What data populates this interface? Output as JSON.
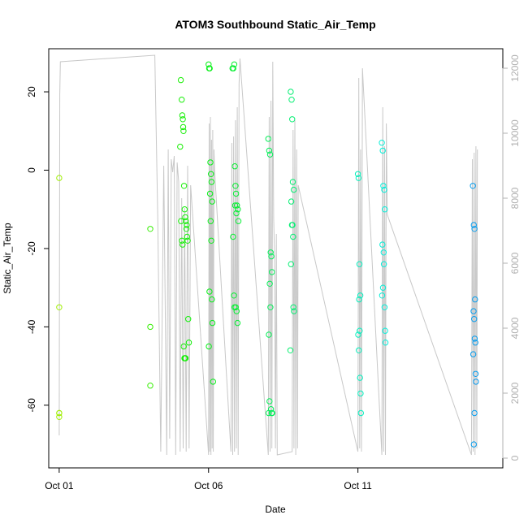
{
  "chart_data": {
    "type": "scatter",
    "title": "ATOM3 Southbound Static_Air_Temp",
    "xlabel": "Date",
    "ylabel": "Static_Air_Temp",
    "x_ticks": [
      "Oct 01",
      "Oct 06",
      "Oct 11"
    ],
    "x_tick_values": [
      1,
      6,
      11
    ],
    "xlim": [
      0.65,
      15.85
    ],
    "ylim": [
      -76,
      31
    ],
    "y_ticks": [
      -60,
      -40,
      -20,
      0,
      20
    ],
    "y2lim": [
      -300,
      12600
    ],
    "y2_ticks": [
      0,
      2000,
      4000,
      6000,
      8000,
      10000,
      12000
    ],
    "y2_color": "#b0b0b0",
    "grid": false,
    "series": [
      {
        "kind": "points",
        "color_scale": "green-to-blue by date",
        "x": [
          1.0,
          1.0,
          1.0,
          1.0,
          1.0,
          4.05,
          4.05,
          4.05,
          5.07,
          5.1,
          5.12,
          5.14,
          5.15,
          5.16,
          5.18,
          5.2,
          5.22,
          5.24,
          5.26,
          5.28,
          5.3,
          5.32,
          5.34,
          5.05,
          5.08,
          5.11,
          5.13,
          5.17,
          5.19,
          5.21,
          5.23,
          5.27,
          6.0,
          6.02,
          6.04,
          6.06,
          6.08,
          6.1,
          6.12,
          6.05,
          6.07,
          6.09,
          6.03,
          6.11,
          6.13,
          6.01,
          6.15,
          6.8,
          6.83,
          6.86,
          6.88,
          6.9,
          6.92,
          6.95,
          6.98,
          7.0,
          6.82,
          6.85,
          6.87,
          6.91,
          6.94,
          6.97,
          6.89,
          6.93,
          8.0,
          8.03,
          8.06,
          8.08,
          8.1,
          8.12,
          8.05,
          8.07,
          8.02,
          8.04,
          8.09,
          8.11,
          8.01,
          8.13,
          8.75,
          8.78,
          8.8,
          8.82,
          8.85,
          8.77,
          8.79,
          8.81,
          8.83,
          8.76,
          8.84,
          8.86,
          8.74,
          11.0,
          11.02,
          11.05,
          11.08,
          11.04,
          11.06,
          11.01,
          11.03,
          11.07,
          11.09,
          11.1,
          11.8,
          11.83,
          11.85,
          11.88,
          11.9,
          11.82,
          11.86,
          11.87,
          11.84,
          11.81,
          11.89,
          11.91,
          11.92,
          14.85,
          14.88,
          14.9,
          14.92,
          14.87,
          14.89,
          14.91,
          14.93,
          14.86,
          14.94,
          14.95,
          14.9,
          14.88
        ],
        "y": [
          -2,
          -35,
          -62,
          -62,
          -63,
          -15,
          -40,
          -55,
          23,
          18,
          14,
          13,
          11,
          10,
          -4,
          -10,
          -12,
          -13,
          -15,
          -17,
          -18,
          -38,
          -44,
          6,
          -13,
          -18,
          -19,
          -45,
          -48,
          -48,
          -48,
          -14,
          27,
          26,
          26,
          2,
          -1,
          -3,
          -8,
          -6,
          -13,
          -18,
          -31,
          -33,
          -39,
          -45,
          -54,
          26,
          26,
          27,
          1,
          -4,
          -6,
          -9,
          -10,
          -13,
          -17,
          -32,
          -35,
          -35,
          -36,
          -39,
          -9,
          -11,
          8,
          5,
          4,
          -21,
          -22,
          -26,
          -29,
          -35,
          -42,
          -59,
          -61,
          -62,
          -62,
          -62,
          20,
          18,
          13,
          -3,
          -5,
          -8,
          -14,
          -14,
          -17,
          -24,
          -35,
          -36,
          -46,
          -1,
          -2,
          -24,
          -32,
          -33,
          -41,
          -42,
          -46,
          -53,
          -57,
          -62,
          7,
          5,
          -4,
          -5,
          -10,
          -19,
          -21,
          -24,
          -30,
          -32,
          -35,
          -41,
          -44,
          -4,
          -14,
          -15,
          -33,
          -36,
          -38,
          -43,
          -44,
          -47,
          -52,
          -54,
          -62,
          -70
        ]
      },
      {
        "kind": "line",
        "name": "",
        "color": "#c8c8c8",
        "axis": "right",
        "x": [
          1.0,
          1.02,
          1.04,
          4.2,
          4.3,
          4.4,
          4.5,
          4.6,
          4.65,
          4.7,
          4.75,
          4.8,
          4.85,
          4.9,
          4.95,
          5.0,
          5.05,
          5.1,
          5.15,
          5.2,
          5.25,
          5.3,
          5.35,
          5.4,
          6.0,
          6.02,
          6.04,
          6.06,
          6.08,
          6.1,
          6.12,
          6.14,
          6.16,
          6.18,
          6.2,
          6.75,
          6.78,
          6.81,
          6.84,
          6.87,
          6.9,
          6.93,
          6.96,
          6.99,
          7.02,
          7.05,
          8.0,
          8.03,
          8.06,
          8.09,
          8.12,
          8.15,
          8.18,
          8.21,
          8.24,
          8.27,
          8.3,
          8.8,
          8.83,
          8.86,
          8.89,
          8.92,
          8.95,
          8.98,
          9.0,
          11.0,
          11.03,
          11.06,
          11.09,
          11.12,
          11.15,
          11.8,
          11.83,
          11.86,
          11.89,
          11.92,
          11.95,
          11.98,
          14.8,
          14.83,
          14.86,
          14.89,
          14.92,
          14.95,
          14.98,
          15.0
        ],
        "y": [
          700,
          11200,
          12200,
          12400,
          7400,
          200,
          9000,
          100,
          9500,
          600,
          9200,
          8800,
          9300,
          100,
          9100,
          8500,
          200,
          8000,
          300,
          7700,
          200,
          9000,
          300,
          8400,
          100,
          10300,
          200,
          10500,
          100,
          9800,
          300,
          10100,
          200,
          9500,
          8900,
          200,
          9700,
          100,
          9900,
          200,
          10400,
          300,
          10800,
          100,
          11500,
          12300,
          100,
          10500,
          200,
          11000,
          300,
          12200,
          7400,
          6200,
          300,
          6900,
          100,
          200,
          10100,
          300,
          10400,
          100,
          9500,
          300,
          8400,
          200,
          11700,
          300,
          9500,
          200,
          12000,
          100,
          10800,
          200,
          9600,
          100,
          10300,
          7500,
          100,
          9200,
          200,
          9400,
          100,
          9600,
          300,
          9500
        ]
      }
    ]
  }
}
